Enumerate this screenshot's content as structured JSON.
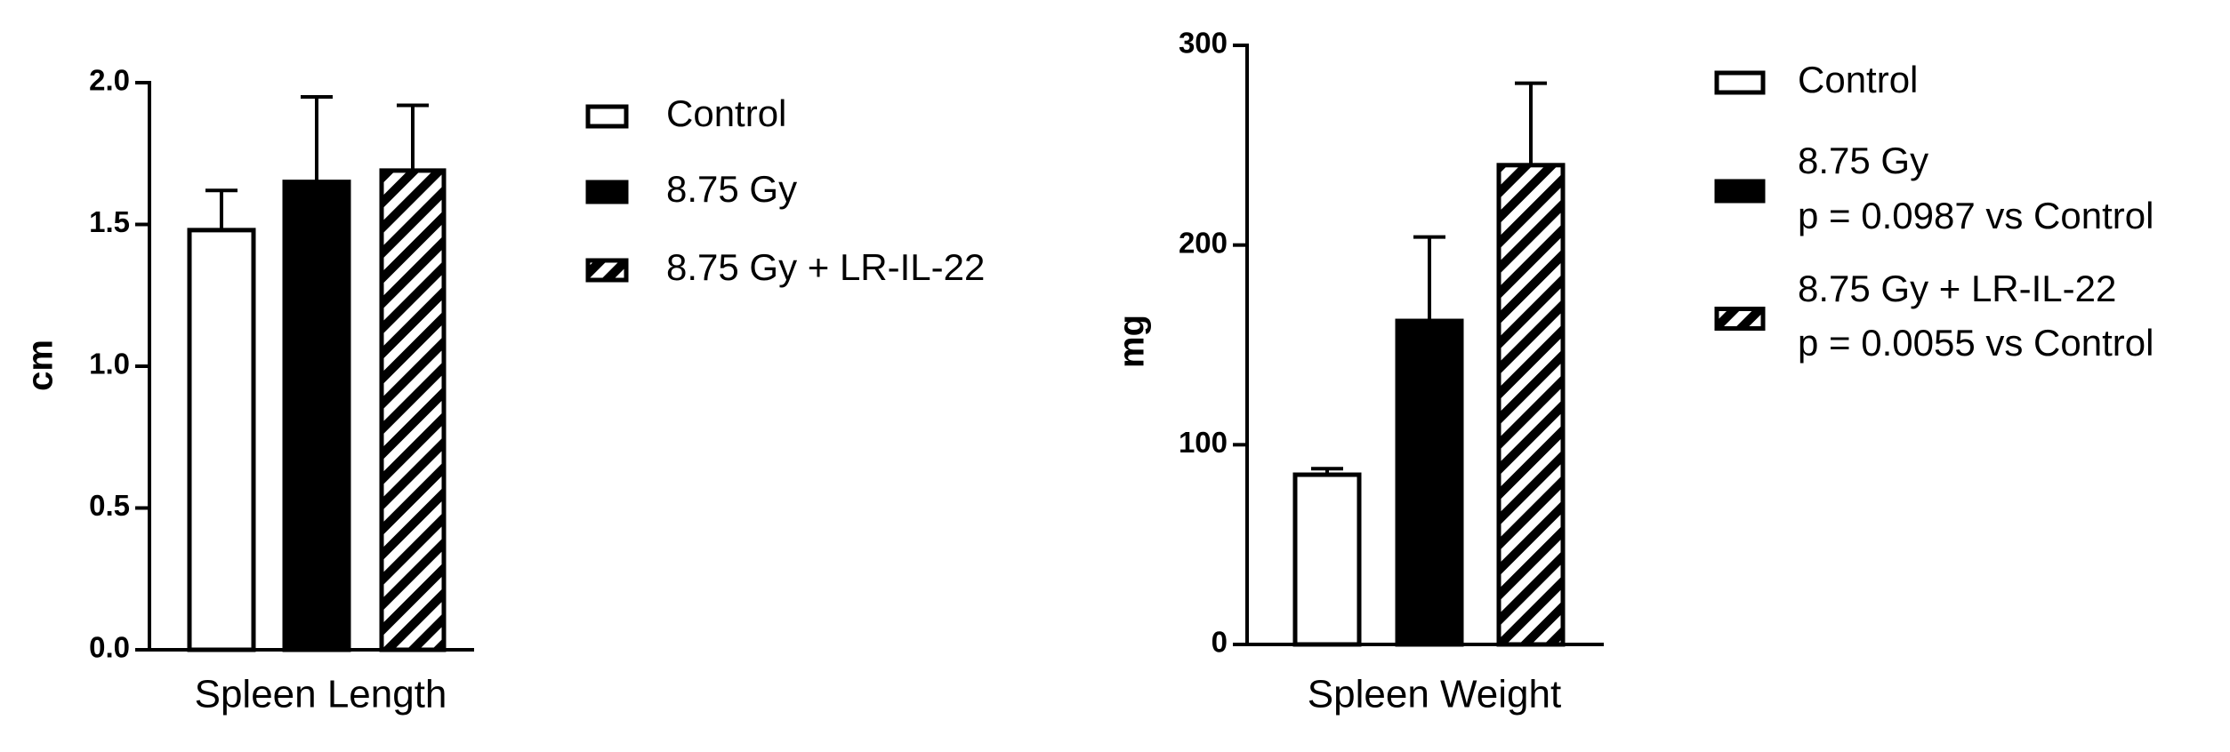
{
  "chart_data": [
    {
      "type": "bar",
      "y_label": "cm",
      "categories": [
        "Spleen Length"
      ],
      "ylim": [
        0,
        2
      ],
      "yticks": [
        {
          "value": 0,
          "label": "0.0"
        },
        0.5,
        {
          "value": 1,
          "label": "1.0"
        },
        1.5,
        {
          "value": 2,
          "label": "2.0"
        }
      ],
      "series": [
        {
          "name": "Control",
          "color": "white",
          "values": [
            1.48
          ],
          "errors": [
            0.14
          ]
        },
        {
          "name": "8.75 Gy",
          "color": "black",
          "values": [
            1.65
          ],
          "errors": [
            0.3
          ]
        },
        {
          "name": "8.75 Gy + LR-IL-22",
          "color": "hatch",
          "values": [
            1.69
          ],
          "errors": [
            0.23
          ]
        }
      ]
    },
    {
      "type": "bar",
      "y_label": "mg",
      "categories": [
        "Spleen Weight"
      ],
      "ylim": [
        0,
        300
      ],
      "yticks": [
        0,
        100,
        200,
        300
      ],
      "series": [
        {
          "name": "Control",
          "color": "white",
          "values": [
            85
          ],
          "errors": [
            3
          ]
        },
        {
          "name": "8.75 Gy",
          "p_label": "p = 0.0987 vs Control",
          "color": "black",
          "values": [
            162
          ],
          "errors": [
            42
          ]
        },
        {
          "name": "8.75 Gy + LR-IL-22",
          "p_label": "p = 0.0055 vs Control",
          "color": "hatch",
          "values": [
            240
          ],
          "errors": [
            41
          ]
        }
      ]
    }
  ]
}
